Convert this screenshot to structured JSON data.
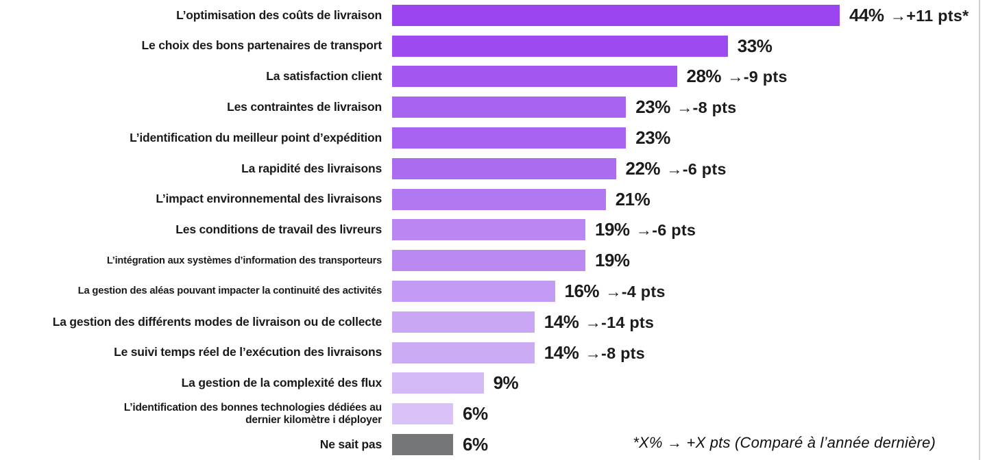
{
  "chart_data": {
    "type": "bar",
    "orientation": "horizontal",
    "title": "",
    "xlabel": "",
    "ylabel": "",
    "xlim": [
      0,
      48
    ],
    "grid": false,
    "legend": null,
    "categories": [
      "L’optimisation des coûts de livraison",
      "Le choix des bons partenaires de transport",
      "La satisfaction client",
      "Les contraintes de livraison",
      "L’identification du meilleur point d’expédition",
      "La rapidité des livraisons",
      "L’impact environnemental des livraisons",
      "Les conditions de travail des livreurs",
      "L’intégration aux systèmes d’information des transporteurs",
      "La gestion des aléas pouvant impacter la continuité des activités",
      "La gestion des différents modes de livraison ou de collecte",
      "Le suivi temps réel de l’exécution des livraisons",
      "La gestion de la complexité des flux",
      "L’identification des bonnes technologies dédiées au dernier kilomètre i  déployer",
      "Ne sait pas"
    ],
    "values": [
      44,
      33,
      28,
      23,
      23,
      22,
      21,
      19,
      19,
      16,
      14,
      14,
      9,
      6,
      6
    ],
    "value_labels": [
      "44%",
      "33%",
      "28%",
      "23%",
      "23%",
      "22%",
      "21%",
      "19%",
      "19%",
      "16%",
      "14%",
      "14%",
      "9%",
      "6%",
      "6%"
    ],
    "deltas": [
      "→+11 pts*",
      "",
      "→-9 pts",
      "→-8 pts",
      "",
      "→-6 pts",
      "",
      "→-6 pts",
      "",
      "→-4 pts",
      "→-14 pts",
      "→-8 pts",
      "",
      "",
      ""
    ],
    "bar_colors": [
      "#9B45F1",
      "#9D4BF1",
      "#A357F0",
      "#A863F0",
      "#A863F0",
      "#AC6CF0",
      "#B178F1",
      "#B986F2",
      "#BB89F2",
      "#C39AF4",
      "#CAA7F5",
      "#CCABF5",
      "#D4B9F7",
      "#D8C2F8",
      "#747678"
    ],
    "footnote": "*X% → +X pts (Comparé à l’année dernière)"
  },
  "decor": {
    "edge_line_color": "#cfcfcf"
  }
}
